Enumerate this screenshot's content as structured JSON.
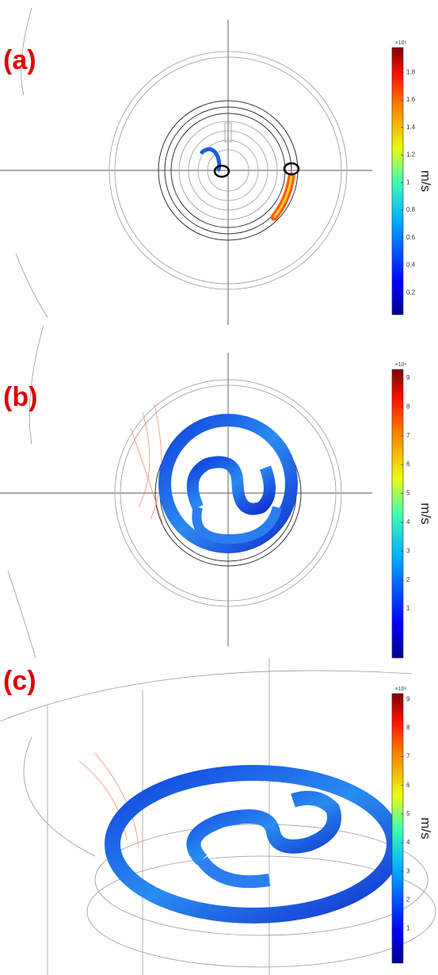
{
  "panels": [
    {
      "label": "(a)",
      "colorbar": {
        "exponent": "×10⁶",
        "unit": "m/s",
        "range": [
          0.04,
          1.98
        ],
        "ticks": [
          0.2,
          0.4,
          0.6,
          0.8,
          1,
          1.2,
          1.4,
          1.6,
          1.8
        ]
      }
    },
    {
      "label": "(b)",
      "colorbar": {
        "exponent": "×10⁶",
        "unit": "m/s",
        "range": [
          -0.7,
          9.3
        ],
        "ticks": [
          1,
          2,
          3,
          4,
          5,
          6,
          7,
          8,
          9
        ]
      }
    },
    {
      "label": "(c)",
      "colorbar": {
        "exponent": "×10⁶",
        "unit": "m/s",
        "range": [
          -0.2,
          9.2
        ],
        "ticks": [
          1,
          2,
          3,
          4,
          5,
          6,
          7,
          8,
          9
        ]
      }
    }
  ]
}
